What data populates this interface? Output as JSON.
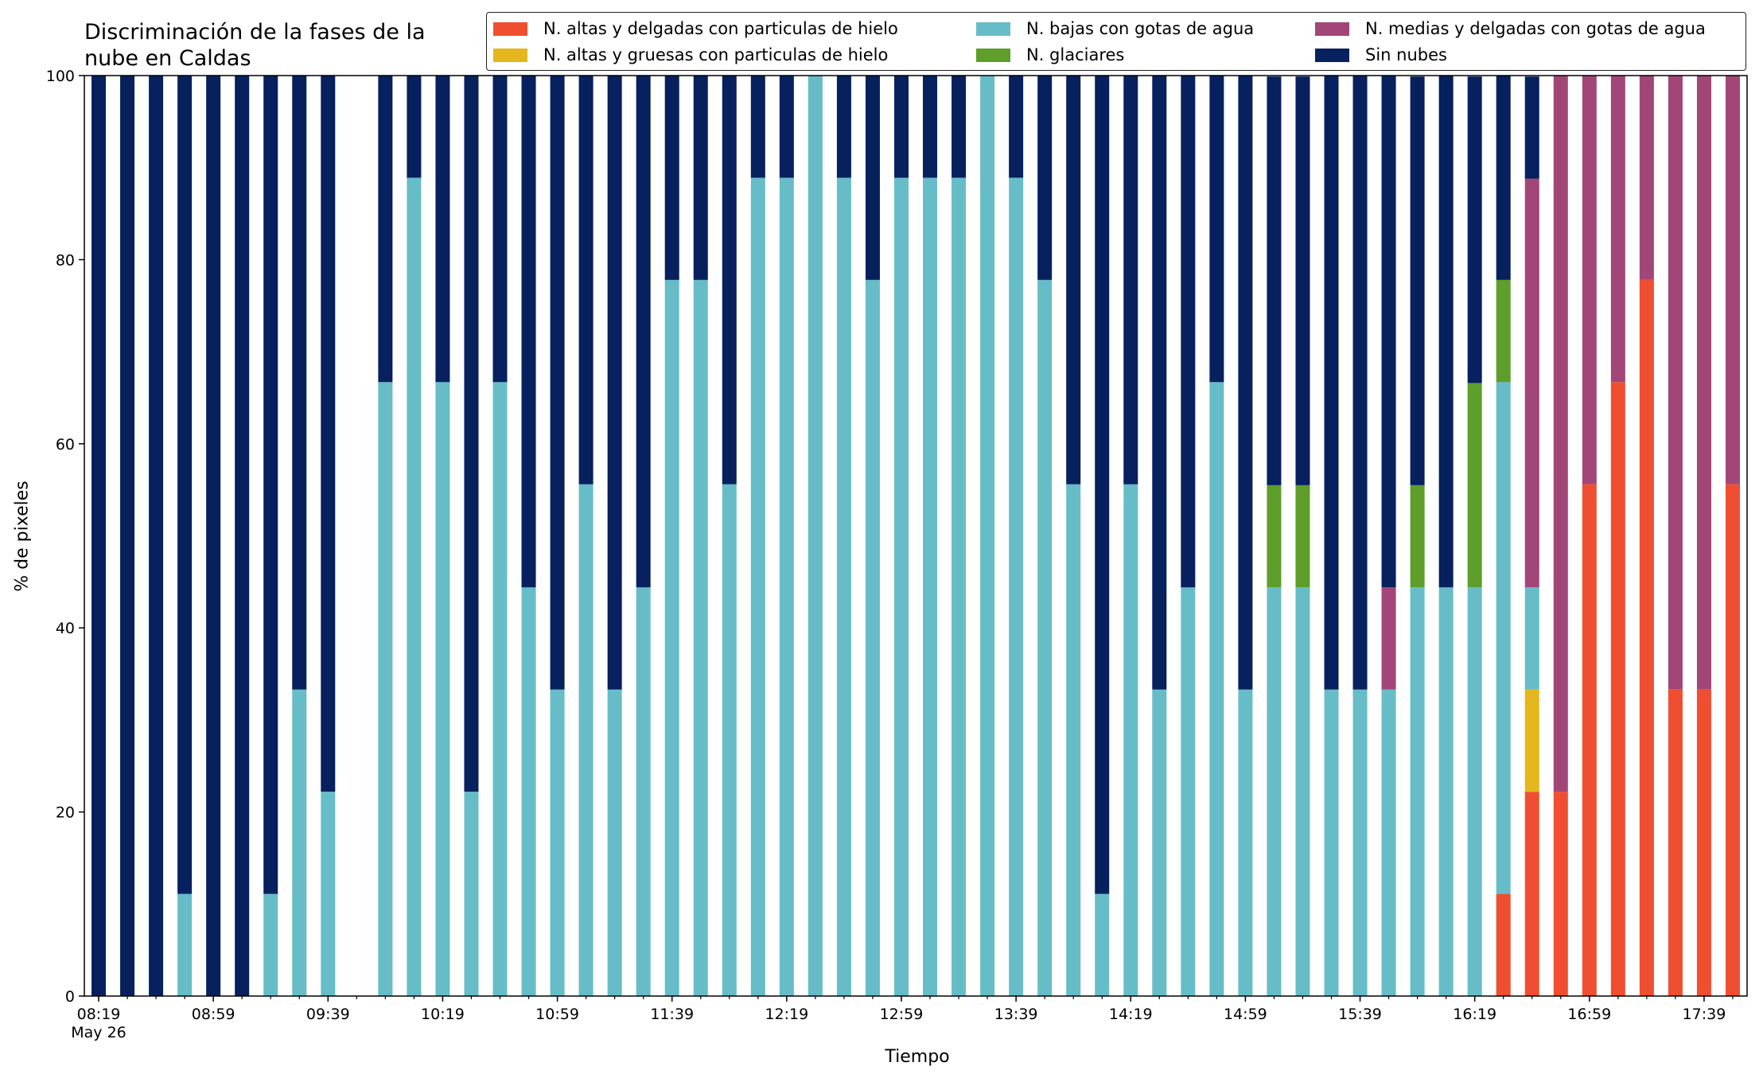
{
  "title": "Discriminación de la fases de la\nnube en Caldas",
  "colors": {
    "altas_delgadas": "#f04e30",
    "altas_gruesas": "#e4b71c",
    "bajas": "#66bdc8",
    "glaciares": "#5e9e2b",
    "medias": "#a24678",
    "sin_nubes": "#07205e"
  },
  "chart_data": {
    "type": "bar",
    "stacked": true,
    "title": "Discriminación de la fases de la\nnube en Caldas",
    "xlabel": "Tiempo",
    "ylabel": "% de pixeles",
    "ylim": [
      0,
      100
    ],
    "yticks": [
      0,
      20,
      40,
      60,
      80,
      100
    ],
    "xlim": [
      "08:14",
      "17:54"
    ],
    "x_tick_labels": [
      "08:19\nMay 26",
      "08:59",
      "09:39",
      "10:19",
      "10:59",
      "11:39",
      "12:19",
      "12:59",
      "13:39",
      "14:19",
      "14:59",
      "15:39",
      "16:19",
      "16:59",
      "17:39"
    ],
    "legend_position": "top-right",
    "x": [
      "08:19",
      "08:29",
      "08:39",
      "08:49",
      "08:59",
      "09:09",
      "09:19",
      "09:29",
      "09:39",
      "09:49",
      "09:59",
      "10:09",
      "10:19",
      "10:29",
      "10:39",
      "10:49",
      "10:59",
      "11:09",
      "11:19",
      "11:29",
      "11:39",
      "11:49",
      "11:59",
      "12:09",
      "12:19",
      "12:29",
      "12:39",
      "12:49",
      "12:59",
      "13:09",
      "13:19",
      "13:29",
      "13:39",
      "13:49",
      "13:59",
      "14:09",
      "14:19",
      "14:29",
      "14:39",
      "14:49",
      "14:59",
      "15:09",
      "15:19",
      "15:29",
      "15:39",
      "15:49",
      "15:59",
      "16:09",
      "16:19",
      "16:29",
      "16:39",
      "16:49",
      "16:59",
      "17:09",
      "17:19",
      "17:29",
      "17:39",
      "17:49"
    ],
    "series": [
      {
        "name": "N. altas y delgadas con particulas de hielo",
        "color_key": "altas_delgadas",
        "values": [
          0,
          0,
          0,
          0,
          0,
          0,
          0,
          0,
          0,
          0,
          0,
          0,
          0,
          0,
          0,
          0,
          0,
          0,
          0,
          0,
          0,
          0,
          0,
          0,
          0,
          0,
          0,
          0,
          0,
          0,
          0,
          0,
          0,
          0,
          0,
          0,
          0,
          0,
          0,
          0,
          0,
          0,
          0,
          0,
          0,
          0,
          0,
          0,
          0,
          11.1,
          22.2,
          22.2,
          55.6,
          66.7,
          77.8,
          33.3,
          33.3,
          55.6
        ]
      },
      {
        "name": "N. altas y gruesas con particulas de hielo",
        "color_key": "altas_gruesas",
        "values": [
          0,
          0,
          0,
          0,
          0,
          0,
          0,
          0,
          0,
          0,
          0,
          0,
          0,
          0,
          0,
          0,
          0,
          0,
          0,
          0,
          0,
          0,
          0,
          0,
          0,
          0,
          0,
          0,
          0,
          0,
          0,
          0,
          0,
          0,
          0,
          0,
          0,
          0,
          0,
          0,
          0,
          0,
          0,
          0,
          0,
          0,
          0,
          0,
          0,
          0,
          11.1,
          0,
          0,
          0,
          0,
          0,
          0,
          0
        ]
      },
      {
        "name": "N. bajas con gotas de agua",
        "color_key": "bajas",
        "values": [
          0,
          0,
          0,
          11.1,
          0,
          0,
          11.1,
          33.3,
          22.2,
          0,
          66.7,
          88.9,
          66.7,
          22.2,
          66.7,
          44.4,
          33.3,
          55.6,
          33.3,
          44.4,
          77.8,
          77.8,
          55.6,
          88.9,
          88.9,
          100,
          88.9,
          77.8,
          88.9,
          88.9,
          88.9,
          100,
          88.9,
          77.8,
          55.6,
          11.1,
          55.6,
          33.3,
          44.4,
          66.7,
          33.3,
          44.4,
          44.4,
          33.3,
          33.3,
          33.3,
          44.4,
          44.4,
          44.4,
          55.6,
          11.1,
          0,
          0,
          0,
          0,
          0,
          0,
          0
        ]
      },
      {
        "name": "N. glaciares",
        "color_key": "glaciares",
        "values": [
          0,
          0,
          0,
          0,
          0,
          0,
          0,
          0,
          0,
          0,
          0,
          0,
          0,
          0,
          0,
          0,
          0,
          0,
          0,
          0,
          0,
          0,
          0,
          0,
          0,
          0,
          0,
          0,
          0,
          0,
          0,
          0,
          0,
          0,
          0,
          0,
          0,
          0,
          0,
          0,
          0,
          11.1,
          11.1,
          0,
          0,
          0,
          11.1,
          0,
          22.2,
          11.1,
          0,
          0,
          0,
          0,
          0,
          0,
          0,
          0
        ]
      },
      {
        "name": "N. medias y delgadas con gotas de agua",
        "color_key": "medias",
        "values": [
          0,
          0,
          0,
          0,
          0,
          0,
          0,
          0,
          0,
          0,
          0,
          0,
          0,
          0,
          0,
          0,
          0,
          0,
          0,
          0,
          0,
          0,
          0,
          0,
          0,
          0,
          0,
          0,
          0,
          0,
          0,
          0,
          0,
          0,
          0,
          0,
          0,
          0,
          0,
          0,
          0,
          0,
          0,
          0,
          0,
          11.1,
          0,
          0,
          0,
          0,
          44.4,
          77.8,
          44.4,
          33.3,
          22.2,
          66.7,
          66.7,
          44.4
        ]
      },
      {
        "name": "Sin nubes",
        "color_key": "sin_nubes",
        "values": [
          100,
          100,
          100,
          88.9,
          100,
          100,
          88.9,
          66.7,
          77.8,
          0,
          33.3,
          11.1,
          33.3,
          77.8,
          33.3,
          55.6,
          66.7,
          44.4,
          66.7,
          55.6,
          22.2,
          22.2,
          44.4,
          11.1,
          11.1,
          0,
          11.1,
          22.2,
          11.1,
          11.1,
          11.1,
          0,
          11.1,
          22.2,
          44.4,
          88.9,
          44.4,
          66.7,
          55.6,
          33.3,
          66.7,
          44.4,
          44.4,
          66.7,
          66.7,
          55.6,
          44.4,
          55.6,
          33.3,
          22.2,
          11.1,
          0,
          0,
          0,
          0,
          0,
          0,
          0
        ]
      }
    ]
  }
}
